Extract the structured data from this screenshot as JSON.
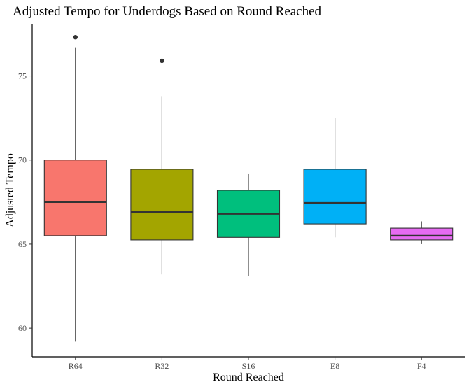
{
  "chart_data": {
    "type": "boxplot",
    "title": "Adjusted Tempo for Underdogs Based on Round Reached",
    "xlabel": "Round Reached",
    "ylabel": "Adjusted Tempo",
    "categories": [
      "R64",
      "R32",
      "S16",
      "E8",
      "F4"
    ],
    "y_ticks": [
      60,
      65,
      70,
      75
    ],
    "ylim": [
      58.3,
      78.1
    ],
    "grid": false,
    "legend": "none",
    "boxes": [
      {
        "category": "R64",
        "whisker_low": 59.2,
        "q1": 65.5,
        "median": 67.5,
        "q3": 70.0,
        "whisker_high": 76.7,
        "outliers": [
          77.3
        ],
        "fill": "#F8766D"
      },
      {
        "category": "R32",
        "whisker_low": 63.2,
        "q1": 65.25,
        "median": 66.9,
        "q3": 69.45,
        "whisker_high": 73.8,
        "outliers": [
          75.9
        ],
        "fill": "#A3A500"
      },
      {
        "category": "S16",
        "whisker_low": 63.1,
        "q1": 65.4,
        "median": 66.8,
        "q3": 68.2,
        "whisker_high": 69.2,
        "outliers": [],
        "fill": "#00BF7D"
      },
      {
        "category": "E8",
        "whisker_low": 65.4,
        "q1": 66.2,
        "median": 67.45,
        "q3": 69.45,
        "whisker_high": 72.5,
        "outliers": [],
        "fill": "#00B0F6"
      },
      {
        "category": "F4",
        "whisker_low": 65.0,
        "q1": 65.25,
        "median": 65.5,
        "q3": 65.95,
        "whisker_high": 66.35,
        "outliers": [],
        "fill": "#E76BF3"
      }
    ]
  }
}
